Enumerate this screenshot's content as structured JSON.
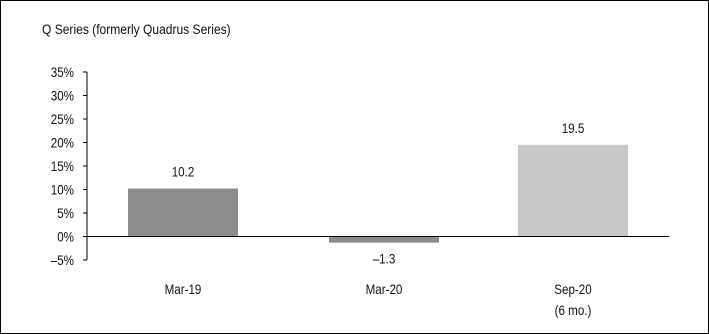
{
  "chart_data": {
    "type": "bar",
    "title": "Q Series (formerly Quadrus Series)",
    "categories": [
      {
        "label": "Mar-19",
        "sublabel": ""
      },
      {
        "label": "Mar-20",
        "sublabel": ""
      },
      {
        "label": "Sep-20",
        "sublabel": "(6 mo.)"
      }
    ],
    "values": [
      10.2,
      -1.3,
      19.5
    ],
    "value_labels": [
      "10.2",
      "–1.3",
      "19.5"
    ],
    "bar_colors": [
      "#8c8c8c",
      "#8c8c8c",
      "#c8c8c8"
    ],
    "ylim": [
      -5,
      35
    ],
    "yticks": [
      {
        "value": 35,
        "label": "35%"
      },
      {
        "value": 30,
        "label": "30%"
      },
      {
        "value": 25,
        "label": "25%"
      },
      {
        "value": 20,
        "label": "20%"
      },
      {
        "value": 15,
        "label": "15%"
      },
      {
        "value": 10,
        "label": "10%"
      },
      {
        "value": 5,
        "label": "5%"
      },
      {
        "value": 0,
        "label": "0%"
      },
      {
        "value": -5,
        "label": "–5%"
      }
    ],
    "xlabel": "",
    "ylabel": "",
    "grid": false,
    "legend": "none"
  }
}
